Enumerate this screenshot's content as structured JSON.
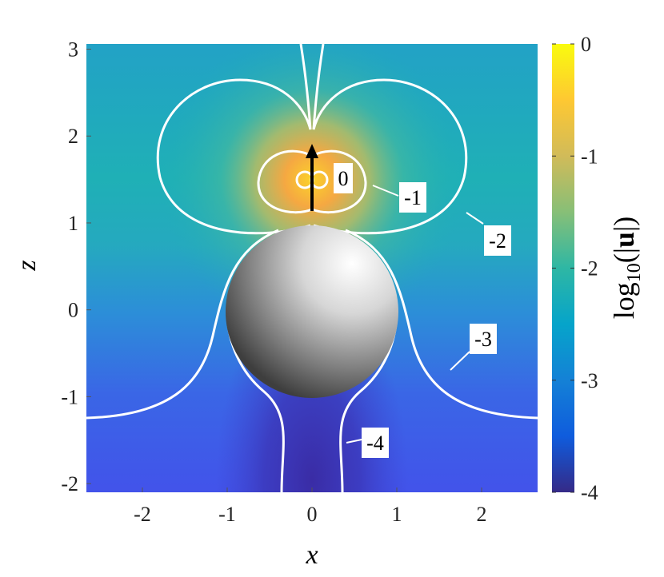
{
  "chart_data": {
    "type": "heatmap",
    "x_label": "x",
    "y_label": "z",
    "xlim": [
      -2.66,
      2.66
    ],
    "ylim": [
      -2.1,
      3.06
    ],
    "xticks": [
      -2,
      -1,
      0,
      1,
      2
    ],
    "yticks": [
      -2,
      -1,
      0,
      1,
      2,
      3
    ],
    "colorbar": {
      "label_parts": [
        "log",
        "10",
        "(|",
        "u",
        "|)"
      ],
      "clim": [
        -4,
        0
      ],
      "ticks": [
        0,
        -1,
        -2,
        -3,
        -4
      ],
      "colors": [
        "#352a87",
        "#0f5cdd",
        "#1481d6",
        "#06a4ca",
        "#2eb7a4",
        "#87bf77",
        "#d1bb59",
        "#fec832",
        "#f9fb0e"
      ]
    },
    "contour_levels": [
      0,
      -1,
      -2,
      -3,
      -4
    ]
  }
}
